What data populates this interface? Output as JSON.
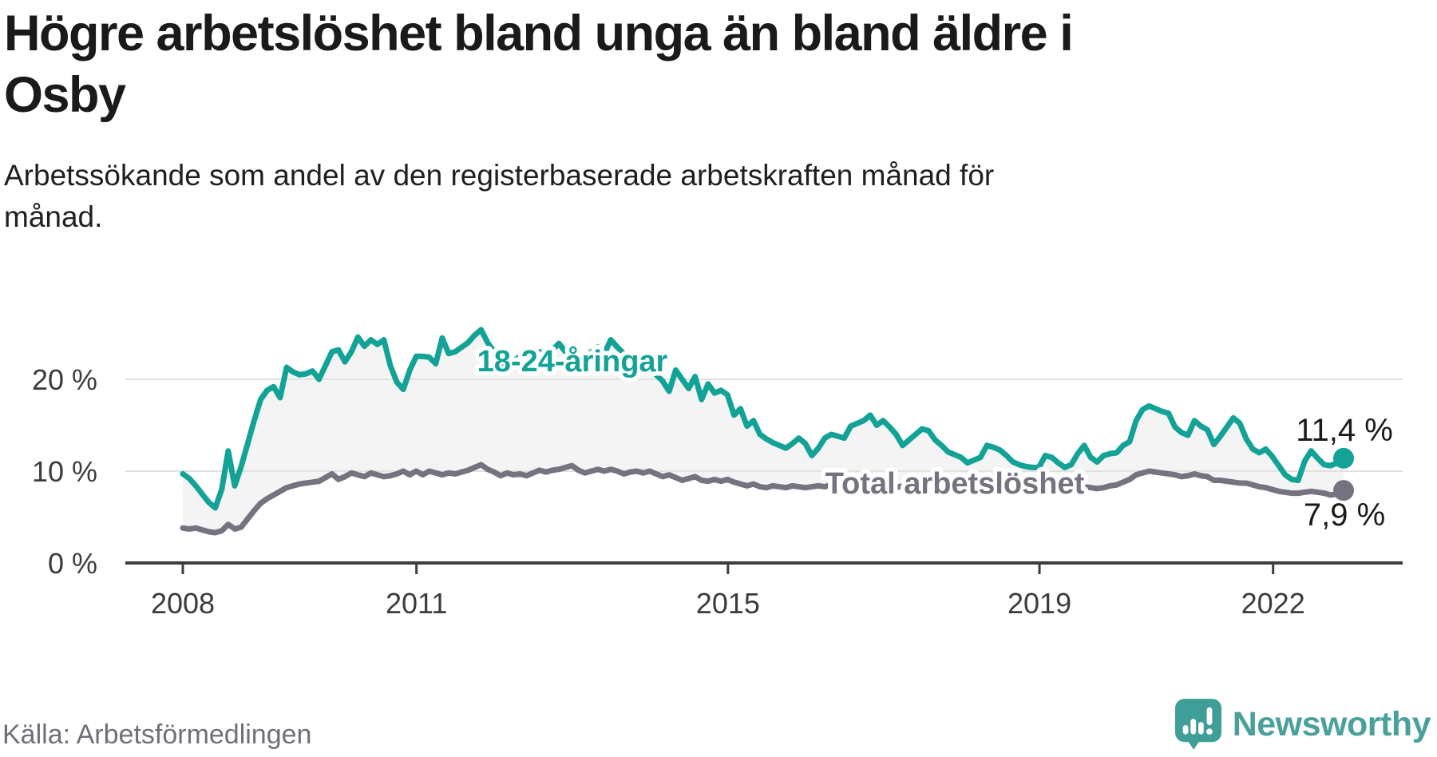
{
  "header": {
    "title_lines": [
      "Högre arbetslöshet bland unga än bland äldre i",
      "Osby"
    ],
    "subtitle_lines": [
      "Arbetssökande som andel av den registerbaserade arbetskraften månad för",
      "månad."
    ]
  },
  "footer": {
    "source": "Källa: Arbetsförmedlingen",
    "brand": "Newsworthy"
  },
  "colors": {
    "accent_teal": "#12a296",
    "line_gray": "#767380",
    "area_fill": "#f4f4f5",
    "gridline": "#e1e1e1",
    "axis": "#3d3d3d",
    "axis_text": "#3c3c3c",
    "value_label_text": "#1a1a1a",
    "halo": "#ffffff",
    "logo_icon": "#3f9e98",
    "logo_text": "#4aa19b",
    "source_text": "#716e79"
  },
  "chart_data": {
    "type": "line",
    "title": "Högre arbetslöshet bland unga än bland äldre i Osby",
    "subtitle": "Arbetssökande som andel av den registerbaserade arbetskraften månad för månad.",
    "unit": "%",
    "frequency": "monthly",
    "x_start": "2008-01",
    "x_end": "2022-12",
    "ylim": [
      0,
      26
    ],
    "grid": "horizontal",
    "area_fill_between": true,
    "y_axis": {
      "ticks": [
        {
          "value": 0,
          "label": "0 %"
        },
        {
          "value": 10,
          "label": "10 %"
        },
        {
          "value": 20,
          "label": "20 %"
        }
      ]
    },
    "x_axis": {
      "ticks": [
        {
          "value": 2008,
          "label": "2008"
        },
        {
          "value": 2011,
          "label": "2011"
        },
        {
          "value": 2015,
          "label": "2015"
        },
        {
          "value": 2019,
          "label": "2019"
        },
        {
          "value": 2022,
          "label": "2022"
        }
      ]
    },
    "series": [
      {
        "name": "18-24-åringar",
        "color": "#12a296",
        "end_label": "11,4 %",
        "end_value": 11.4,
        "values": [
          9.7,
          9.2,
          8.4,
          7.5,
          6.6,
          6.0,
          8.0,
          12.2,
          8.4,
          10.5,
          13.0,
          15.5,
          17.8,
          18.8,
          19.2,
          18.0,
          21.3,
          20.8,
          20.5,
          20.6,
          20.9,
          20.0,
          21.5,
          23.0,
          23.2,
          21.9,
          23.0,
          24.6,
          23.6,
          24.3,
          23.8,
          24.3,
          21.5,
          19.7,
          18.9,
          21.0,
          22.5,
          22.5,
          22.4,
          21.7,
          24.5,
          22.8,
          23.0,
          23.5,
          24.0,
          24.8,
          25.4,
          24.0,
          23.0,
          22.0,
          21.5,
          22.0,
          22.5,
          21.8,
          22.3,
          23.0,
          22.5,
          23.2,
          23.9,
          23.0,
          22.5,
          22.0,
          22.5,
          23.0,
          23.5,
          22.8,
          24.3,
          23.5,
          22.8,
          22.0,
          21.5,
          21.8,
          21.0,
          20.5,
          19.8,
          18.7,
          21.0,
          20.0,
          19.0,
          20.3,
          17.8,
          19.5,
          18.5,
          18.8,
          18.3,
          16.1,
          16.8,
          14.9,
          15.5,
          14.0,
          13.5,
          13.1,
          12.8,
          12.5,
          13.0,
          13.6,
          13.0,
          11.7,
          12.5,
          13.6,
          14.0,
          13.8,
          13.6,
          14.9,
          15.2,
          15.5,
          16.1,
          15.0,
          15.5,
          14.8,
          14.0,
          12.8,
          13.4,
          14.0,
          14.6,
          14.4,
          13.4,
          12.8,
          12.1,
          11.8,
          11.5,
          10.9,
          11.2,
          11.5,
          12.8,
          12.6,
          12.3,
          11.7,
          11.0,
          10.7,
          10.5,
          10.4,
          10.4,
          11.7,
          11.5,
          10.9,
          10.4,
          10.7,
          11.9,
          12.8,
          11.5,
          11.0,
          11.7,
          11.9,
          12.0,
          12.8,
          13.2,
          15.5,
          16.7,
          17.1,
          16.8,
          16.5,
          16.3,
          14.8,
          14.2,
          13.9,
          15.5,
          14.9,
          14.5,
          12.9,
          13.8,
          14.8,
          15.8,
          15.2,
          13.5,
          12.4,
          12.0,
          12.4,
          11.6,
          10.6,
          9.6,
          9.1,
          9.0,
          11.1,
          12.2,
          11.4,
          10.7,
          10.6,
          10.9,
          11.4
        ]
      },
      {
        "name": "Total arbetslöshet",
        "color": "#767380",
        "end_label": "7,9 %",
        "end_value": 7.9,
        "values": [
          3.8,
          3.7,
          3.8,
          3.6,
          3.4,
          3.3,
          3.5,
          4.2,
          3.7,
          3.9,
          4.8,
          5.7,
          6.5,
          7.0,
          7.4,
          7.8,
          8.2,
          8.4,
          8.6,
          8.7,
          8.8,
          8.9,
          9.3,
          9.7,
          9.1,
          9.4,
          9.8,
          9.6,
          9.4,
          9.8,
          9.6,
          9.4,
          9.5,
          9.7,
          10.0,
          9.6,
          10.0,
          9.6,
          10.0,
          9.8,
          9.6,
          9.8,
          9.7,
          9.9,
          10.1,
          10.4,
          10.7,
          10.2,
          9.9,
          9.5,
          9.8,
          9.6,
          9.7,
          9.5,
          9.8,
          10.1,
          9.9,
          10.1,
          10.2,
          10.4,
          10.6,
          10.1,
          9.8,
          10.0,
          10.2,
          10.0,
          10.2,
          10.0,
          9.7,
          9.9,
          10.0,
          9.8,
          10.0,
          9.7,
          9.4,
          9.6,
          9.3,
          9.0,
          9.2,
          9.4,
          9.0,
          8.9,
          9.1,
          8.9,
          9.1,
          8.8,
          8.6,
          8.4,
          8.6,
          8.3,
          8.2,
          8.4,
          8.3,
          8.2,
          8.4,
          8.3,
          8.2,
          8.3,
          8.4,
          8.3,
          8.5,
          8.4,
          8.3,
          8.5,
          8.4,
          8.3,
          8.4,
          8.3,
          8.4,
          8.3,
          8.2,
          8.4,
          8.5,
          8.4,
          8.5,
          8.4,
          8.3,
          8.2,
          8.3,
          8.2,
          8.3,
          8.2,
          8.1,
          8.3,
          8.4,
          8.3,
          8.4,
          8.3,
          8.2,
          8.1,
          8.2,
          8.1,
          8.2,
          8.1,
          8.0,
          7.9,
          8.0,
          8.1,
          8.2,
          8.3,
          8.2,
          8.1,
          8.2,
          8.4,
          8.5,
          8.8,
          9.1,
          9.6,
          9.8,
          10.0,
          9.9,
          9.8,
          9.7,
          9.6,
          9.4,
          9.5,
          9.7,
          9.5,
          9.4,
          9.0,
          9.0,
          8.9,
          8.8,
          8.7,
          8.7,
          8.5,
          8.3,
          8.2,
          8.0,
          7.8,
          7.7,
          7.6,
          7.6,
          7.7,
          7.8,
          7.7,
          7.6,
          7.4,
          7.5,
          7.9
        ]
      }
    ]
  }
}
